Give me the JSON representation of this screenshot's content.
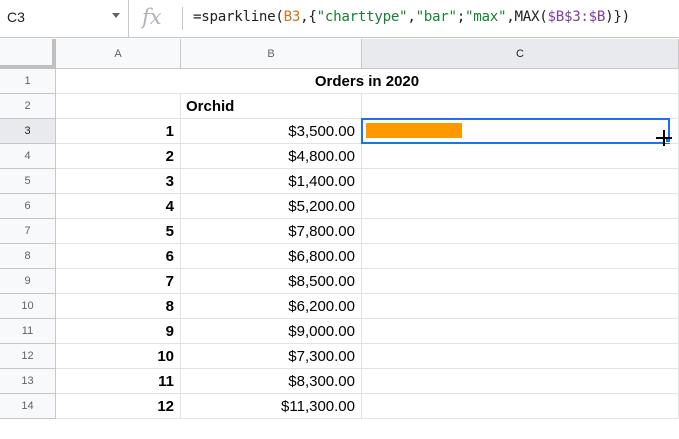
{
  "formula_bar": {
    "name_box": "C3",
    "fx_label": "fx",
    "formula_parts": [
      {
        "text": "=sparkline(",
        "kind": "plain"
      },
      {
        "text": "B3",
        "kind": "ref"
      },
      {
        "text": ",{",
        "kind": "plain"
      },
      {
        "text": "\"charttype\"",
        "kind": "string"
      },
      {
        "text": ",",
        "kind": "plain"
      },
      {
        "text": "\"bar\"",
        "kind": "string"
      },
      {
        "text": ";",
        "kind": "plain"
      },
      {
        "text": "\"max\"",
        "kind": "string"
      },
      {
        "text": ",MAX(",
        "kind": "plain"
      },
      {
        "text": "$B$3:$B",
        "kind": "ref2"
      },
      {
        "text": ")})",
        "kind": "plain"
      }
    ]
  },
  "columns": [
    "A",
    "B",
    "C"
  ],
  "sheet": {
    "title": "Orders in 2020",
    "header": "Orchid",
    "rows": [
      {
        "row": "1"
      },
      {
        "row": "2"
      },
      {
        "row": "3",
        "index": "1",
        "amount": "$3,500.00"
      },
      {
        "row": "4",
        "index": "2",
        "amount": "$4,800.00"
      },
      {
        "row": "5",
        "index": "3",
        "amount": "$1,400.00"
      },
      {
        "row": "6",
        "index": "4",
        "amount": "$5,200.00"
      },
      {
        "row": "7",
        "index": "5",
        "amount": "$7,800.00"
      },
      {
        "row": "8",
        "index": "6",
        "amount": "$6,800.00"
      },
      {
        "row": "9",
        "index": "7",
        "amount": "$8,500.00"
      },
      {
        "row": "10",
        "index": "8",
        "amount": "$6,200.00"
      },
      {
        "row": "11",
        "index": "9",
        "amount": "$9,000.00"
      },
      {
        "row": "12",
        "index": "10",
        "amount": "$7,300.00"
      },
      {
        "row": "13",
        "index": "11",
        "amount": "$8,300.00"
      },
      {
        "row": "14",
        "index": "12",
        "amount": "$11,300.00"
      }
    ]
  },
  "sparkline": {
    "value": 3500,
    "max": 11300,
    "color": "#ff9900"
  },
  "selection": {
    "cell": "C3",
    "color": "#1a73e8"
  }
}
